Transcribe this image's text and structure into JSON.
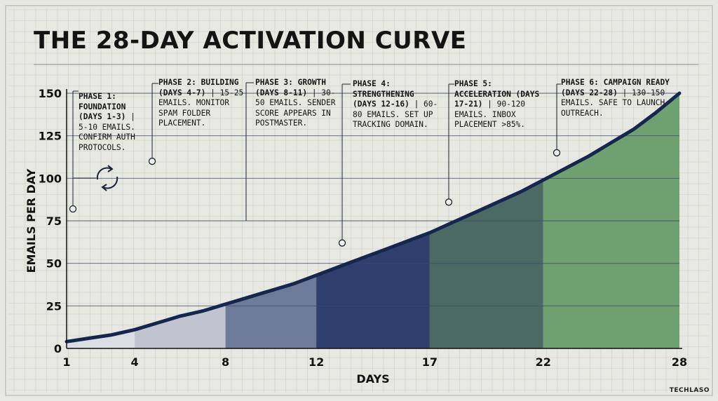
{
  "title": "THE 28-DAY ACTIVATION CURVE",
  "brand": "TECHLASO",
  "colors": {
    "background": "#e6e8e1",
    "grid": "#cdd0c8",
    "curve": "#17264d",
    "phase_fills": [
      "#dadde2",
      "#bfc4ce",
      "#6e7a99",
      "#2e3f6d",
      "#4b6a63",
      "#6fa06f"
    ]
  },
  "refresh_icon": "refresh-cycle-icon",
  "phases": [
    {
      "heading": "PHASE 1:",
      "label": "FOUNDATION (DAYS 1-3)",
      "detail": " | 5-10 EMAILS. CONFIRM AUTH PROTOCOLS."
    },
    {
      "heading": "PHASE 2: BUILDING",
      "label": "(DAYS 4-7)",
      "detail": " | 15-25 EMAILS. MONITOR SPAM FOLDER PLACEMENT."
    },
    {
      "heading": "PHASE 3: GROWTH",
      "label": "(DAYS 8-11)",
      "detail": " | 30-50 EMAILS. SENDER SCORE APPEARS IN POSTMASTER."
    },
    {
      "heading": "PHASE 4:",
      "label": "STRENGTHENING (DAYS 12-16)",
      "detail": " | 60-80 EMAILS. SET UP TRACKING DOMAIN."
    },
    {
      "heading": "PHASE 5:",
      "label": "ACCELERATION (DAYS 17-21)",
      "detail": " | 90-120 EMAILS. INBOX PLACEMENT >85%."
    },
    {
      "heading": "PHASE 6: CAMPAIGN READY",
      "label": "(DAYS 22-28)",
      "detail": " | 130-150 EMAILS. SAFE TO LAUNCH OUTREACH."
    }
  ],
  "chart_data": {
    "type": "area",
    "title": "THE 28-DAY ACTIVATION CURVE",
    "xlabel": "DAYS",
    "ylabel": "EMAILS PER DAY",
    "x_ticks": [
      1,
      4,
      8,
      12,
      17,
      22,
      28
    ],
    "y_ticks": [
      0,
      25,
      50,
      75,
      100,
      125,
      150
    ],
    "xlim": [
      1,
      28
    ],
    "ylim": [
      0,
      150
    ],
    "grid": true,
    "series": [
      {
        "x": [
          1,
          2,
          3,
          4,
          5,
          6,
          7,
          8,
          9,
          10,
          11,
          12,
          13,
          14,
          15,
          16,
          17,
          18,
          19,
          20,
          21,
          22,
          23,
          24,
          25,
          26,
          27,
          28
        ],
        "y": [
          4,
          6,
          8,
          11,
          15,
          19,
          22,
          26,
          30,
          34,
          38,
          43,
          48,
          53,
          58,
          63,
          68,
          74,
          80,
          86,
          92,
          99,
          106,
          113,
          121,
          129,
          139,
          150
        ]
      }
    ],
    "phase_ranges": [
      [
        1,
        4
      ],
      [
        4,
        8
      ],
      [
        8,
        12
      ],
      [
        12,
        17
      ],
      [
        17,
        22
      ],
      [
        22,
        28
      ]
    ],
    "phase_marker_y": [
      82,
      110,
      null,
      62,
      86,
      115
    ]
  }
}
